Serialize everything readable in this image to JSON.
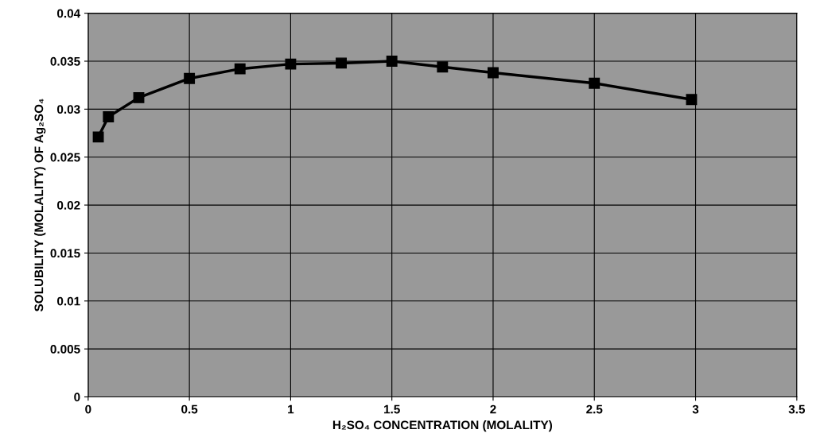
{
  "chart_data": {
    "type": "line",
    "xlabel": "H₂SO₄ CONCENTRATION (MOLALITY)",
    "ylabel": "SOLUBILITY (MOLALITY) OF Ag₂SO₄",
    "x": [
      0.05,
      0.1,
      0.25,
      0.5,
      0.75,
      1,
      1.25,
      1.5,
      1.75,
      2,
      2.5,
      2.98
    ],
    "series": [
      {
        "color": "#000000",
        "values": [
          0.0271,
          0.0292,
          0.0312,
          0.0332,
          0.0342,
          0.0347,
          0.0348,
          0.035,
          0.0344,
          0.0338,
          0.0327,
          0.031
        ]
      }
    ],
    "xlim": [
      0,
      3.5
    ],
    "xticks": [
      0,
      0.5,
      1,
      1.5,
      2,
      2.5,
      3,
      3.5
    ],
    "ylim": [
      0,
      0.04
    ],
    "yticks": [
      0,
      0.005,
      0.01,
      0.015,
      0.02,
      0.025,
      0.03,
      0.035,
      0.04
    ],
    "grid": true,
    "marker": "square",
    "line_style": "solid"
  }
}
